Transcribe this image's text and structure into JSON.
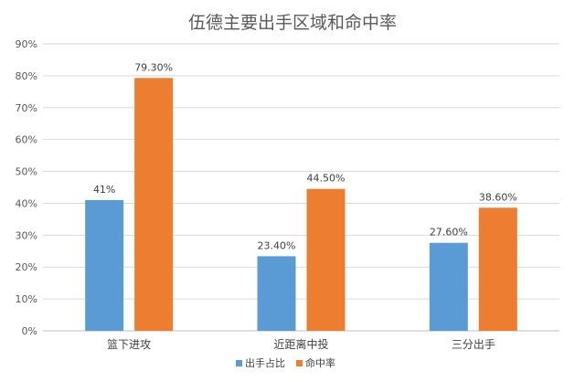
{
  "chart_data": {
    "type": "bar",
    "title": "伍德主要出手区域和命中率",
    "categories": [
      "篮下进攻",
      "近距离中投",
      "三分出手"
    ],
    "series": [
      {
        "name": "出手占比",
        "values": [
          41,
          23.4,
          27.6
        ],
        "labels": [
          "41%",
          "23.40%",
          "27.60%"
        ],
        "color": "#5b9bd5"
      },
      {
        "name": "命中率",
        "values": [
          79.3,
          44.5,
          38.6
        ],
        "labels": [
          "79.30%",
          "44.50%",
          "38.60%"
        ],
        "color": "#ed7d31"
      }
    ],
    "ylim": [
      0,
      90
    ],
    "yticks": [
      0,
      10,
      20,
      30,
      40,
      50,
      60,
      70,
      80,
      90
    ],
    "ytick_labels": [
      "0%",
      "10%",
      "20%",
      "30%",
      "40%",
      "50%",
      "60%",
      "70%",
      "80%",
      "90%"
    ],
    "xlabel": "",
    "ylabel": "",
    "grid": true,
    "legend": "bottom-center"
  }
}
